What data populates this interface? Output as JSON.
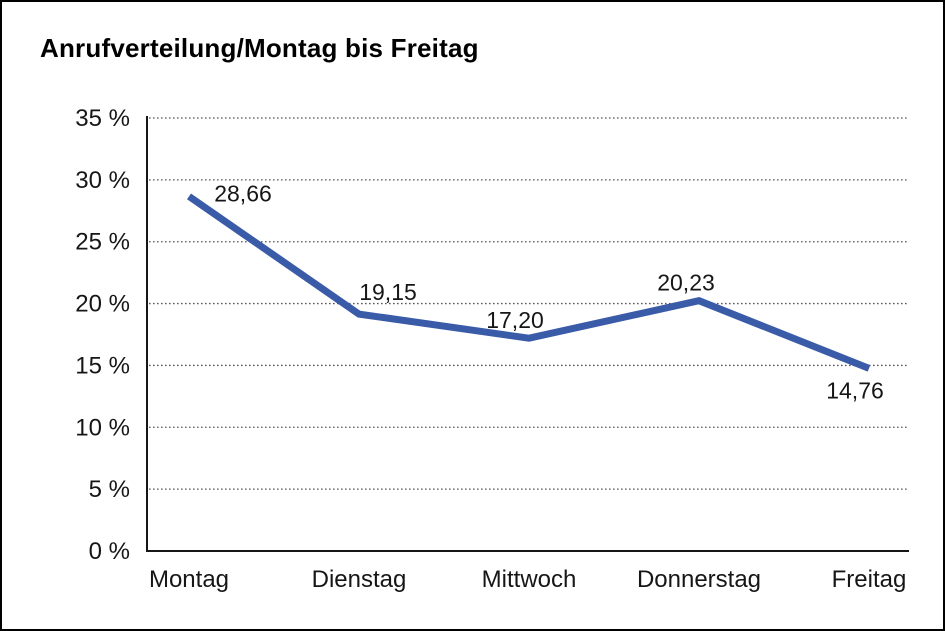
{
  "window": {
    "background": "#ffffff",
    "border_color": "#000000"
  },
  "chart_data": {
    "type": "line",
    "title": "Anrufverteilung/Montag bis Freitag",
    "categories": [
      "Montag",
      "Dienstag",
      "Mittwoch",
      "Donnerstag",
      "Freitag"
    ],
    "values": [
      28.66,
      19.15,
      17.2,
      20.23,
      14.76
    ],
    "value_labels": [
      "28,66",
      "19,15",
      "17,20",
      "20,23",
      "14,76"
    ],
    "xlabel": "",
    "ylabel": "",
    "ylim": [
      0,
      35
    ],
    "y_tick_step": 5,
    "y_tick_values": [
      0,
      5,
      10,
      15,
      20,
      25,
      30,
      35
    ],
    "y_tick_labels": [
      "0 %",
      "5 %",
      "10 %",
      "15 %",
      "20 %",
      "25 %",
      "30 %",
      "35 %"
    ],
    "grid": "horizontal-dotted",
    "legend": "none",
    "decimal_separator": ","
  },
  "colors": {
    "line": "#3A5BA8",
    "axis": "#161616",
    "gridline": "#565656",
    "label_text": "#161616",
    "title_text": "#000000"
  }
}
